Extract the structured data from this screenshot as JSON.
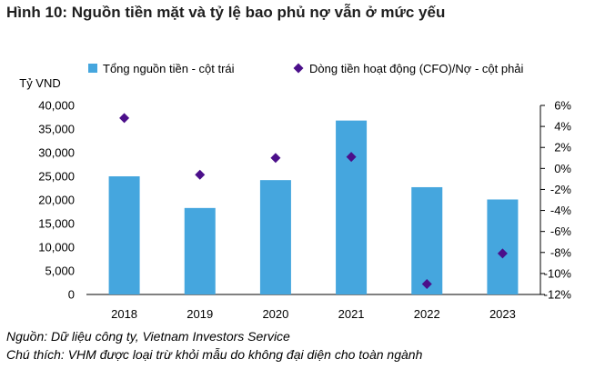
{
  "title": "Hình 10: Nguồn tiền mặt và tỷ lệ bao phủ nợ vẫn ở mức yếu",
  "notes": {
    "source": "Nguồn: Dữ liệu công ty, Vietnam Investors Service",
    "remark": "Chú thích: VHM được loại trừ khỏi mẫu do không đại diện cho toàn ngành"
  },
  "colors": {
    "bar": "#45a6de",
    "marker": "#4b0f8a",
    "axis": "#000000"
  },
  "chart_data": {
    "type": "bar",
    "categories": [
      "2018",
      "2019",
      "2020",
      "2021",
      "2022",
      "2023"
    ],
    "ylabel": "Tỷ VND",
    "ylim": [
      0,
      40000
    ],
    "y_ticks": [
      "0",
      "5,000",
      "10,000",
      "15,000",
      "20,000",
      "25,000",
      "30,000",
      "35,000",
      "40,000"
    ],
    "y2lim": [
      -12,
      6
    ],
    "y2_ticks": [
      "-12%",
      "-10%",
      "-8%",
      "-6%",
      "-4%",
      "-2%",
      "0%",
      "2%",
      "4%",
      "6%"
    ],
    "series": [
      {
        "name": "Tổng nguồn tiền - cột trái",
        "type": "bar",
        "axis": "left",
        "values": [
          25000,
          18300,
          24200,
          36800,
          22700,
          20100
        ]
      },
      {
        "name": "Dòng tiền hoạt động (CFO)/Nợ - cột phải",
        "type": "scatter",
        "axis": "right",
        "values": [
          4.8,
          -0.6,
          1.0,
          1.1,
          -11.0,
          -8.1
        ]
      }
    ],
    "legend": "top"
  }
}
